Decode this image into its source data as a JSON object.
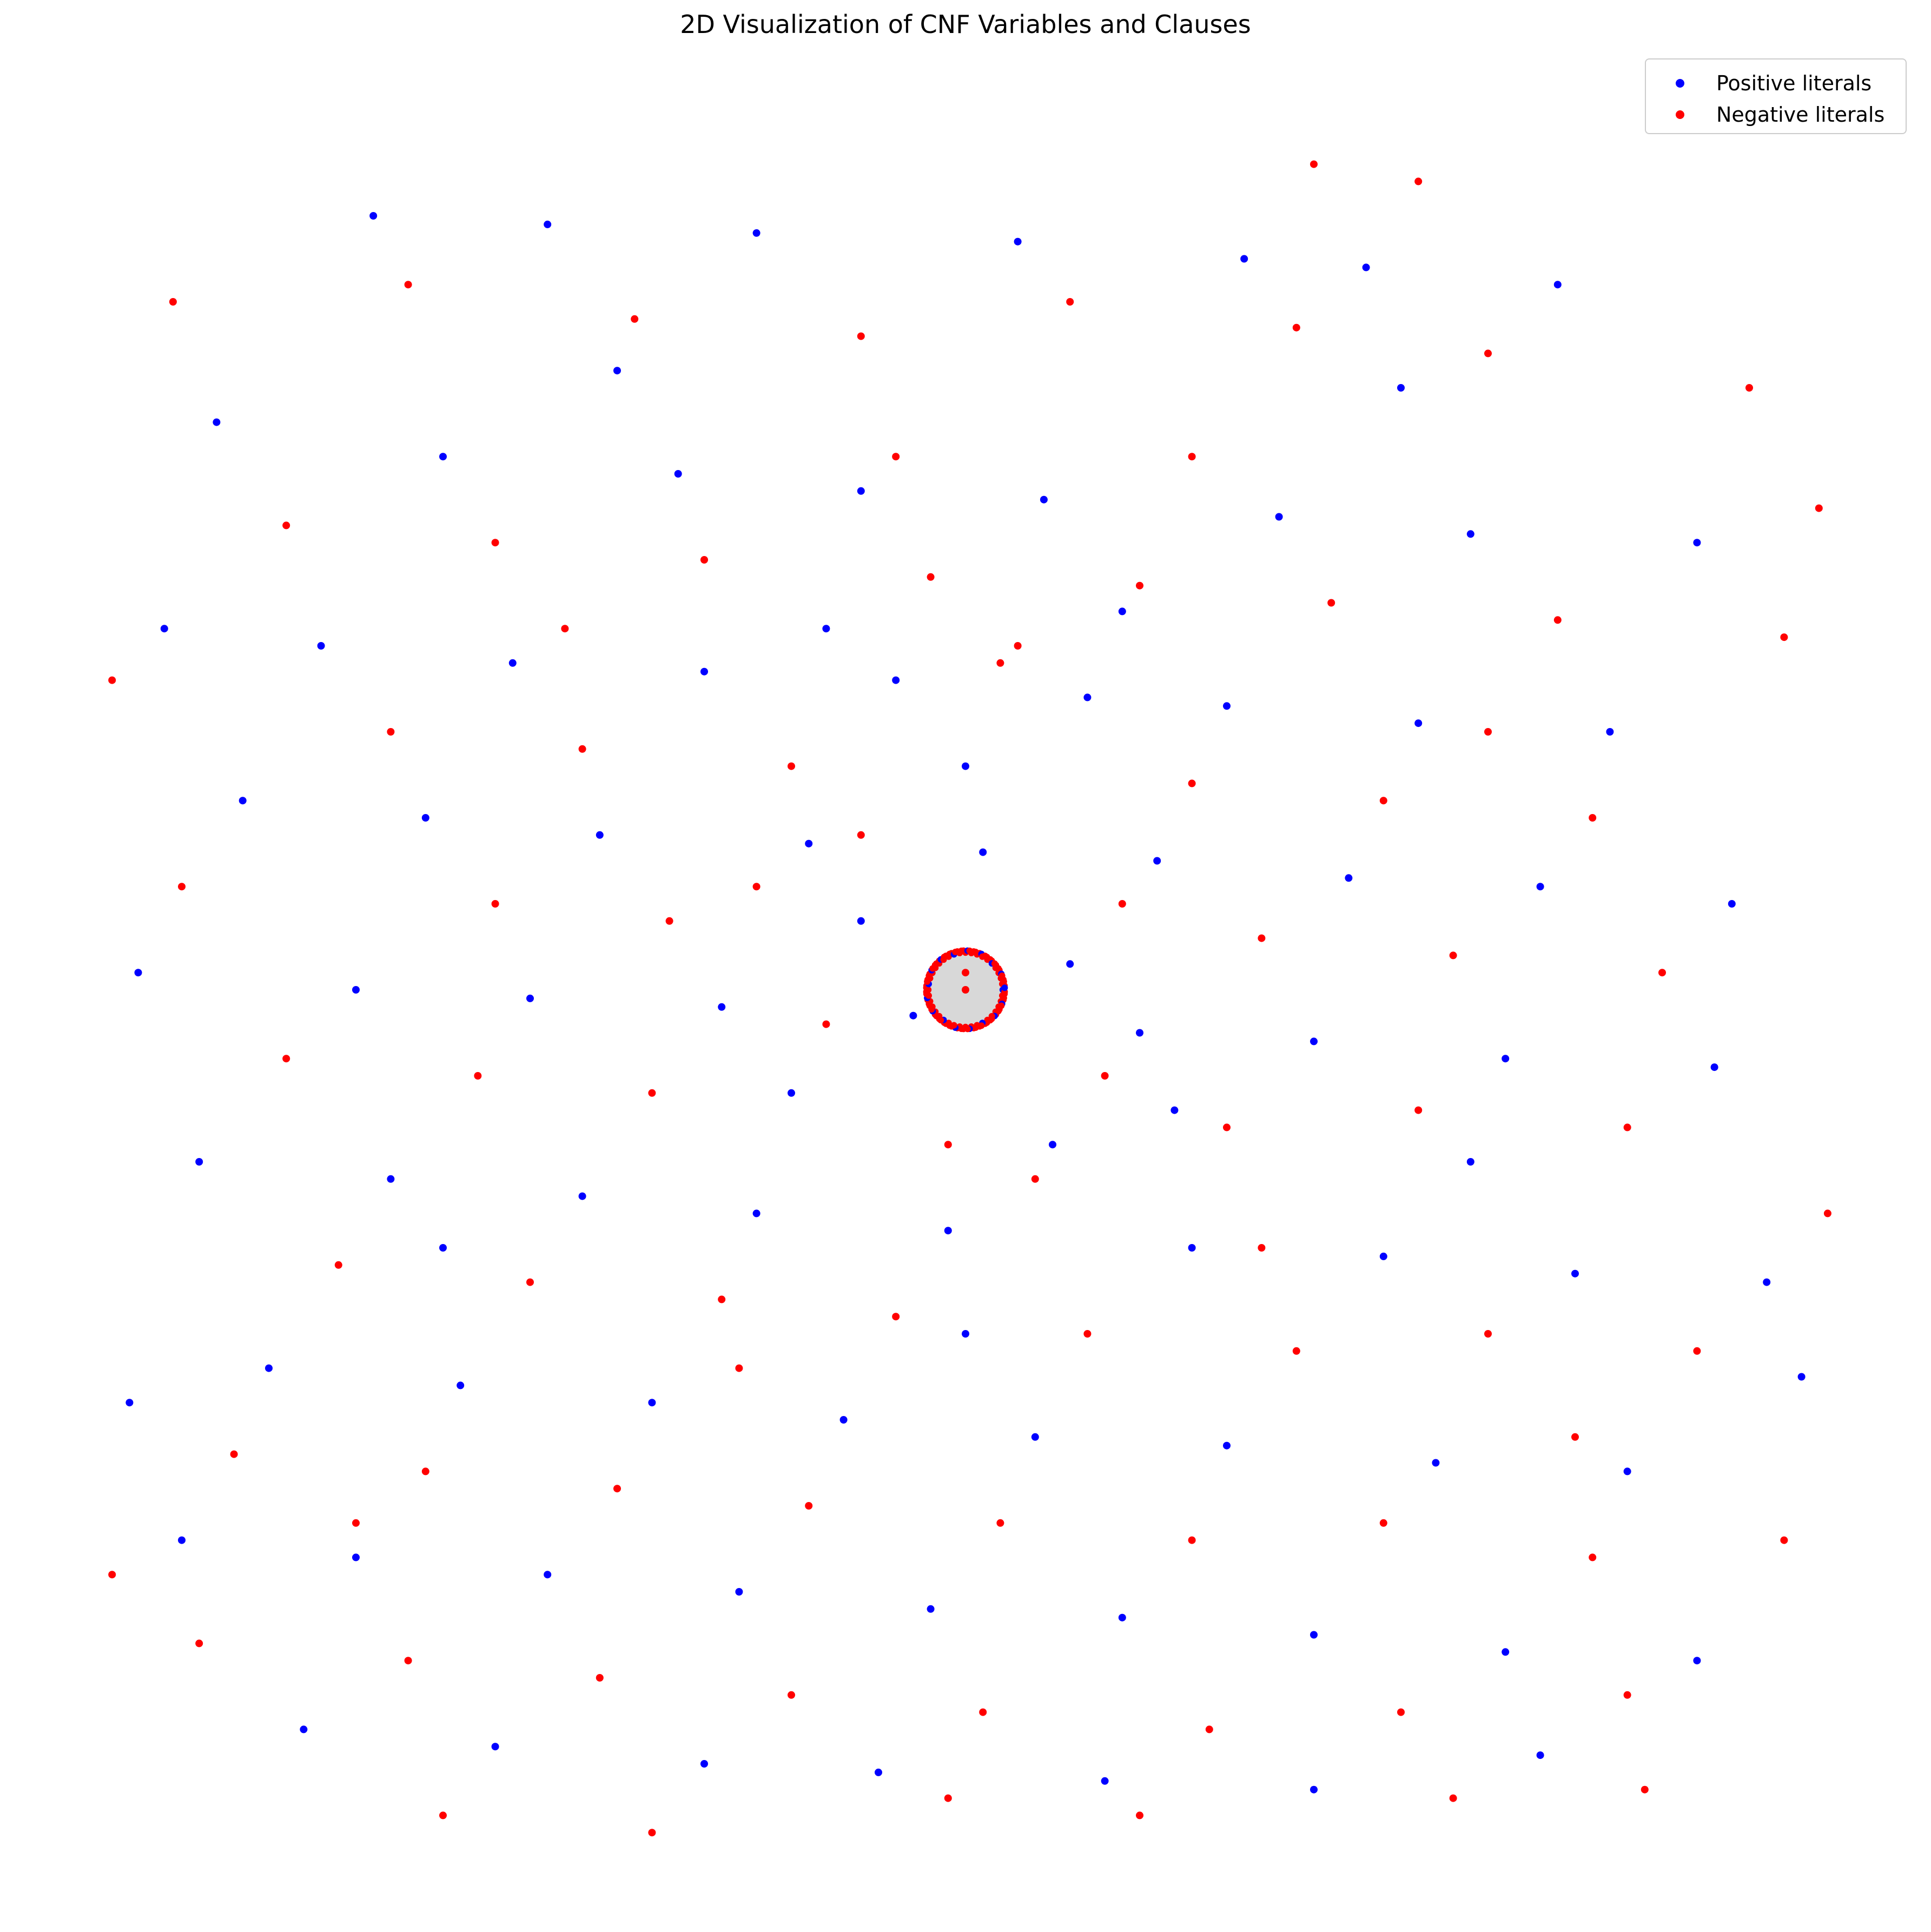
{
  "chart_data": {
    "type": "scatter",
    "title": "2D Visualization of CNF Variables and Clauses",
    "xlabel": "",
    "ylabel": "",
    "axes_visible": false,
    "grid": false,
    "xlim": [
      -1.0,
      1.0
    ],
    "ylim": [
      -1.0,
      1.0
    ],
    "legend": {
      "placement": "top-right",
      "entries": [
        {
          "label": "Positive literals",
          "color": "#0000ff"
        },
        {
          "label": "Negative literals",
          "color": "#ff0000"
        }
      ]
    },
    "series": [
      {
        "name": "Positive literals",
        "color": "#0000ff",
        "points": [
          [
            -0.68,
            0.9
          ],
          [
            -0.48,
            0.89
          ],
          [
            -0.24,
            0.88
          ],
          [
            0.06,
            0.87
          ],
          [
            0.32,
            0.85
          ],
          [
            0.46,
            0.84
          ],
          [
            0.68,
            0.82
          ],
          [
            -0.86,
            0.66
          ],
          [
            -0.6,
            0.62
          ],
          [
            -0.33,
            0.6
          ],
          [
            -0.12,
            0.58
          ],
          [
            0.09,
            0.57
          ],
          [
            0.36,
            0.55
          ],
          [
            0.58,
            0.53
          ],
          [
            0.84,
            0.52
          ],
          [
            -0.92,
            0.42
          ],
          [
            -0.74,
            0.4
          ],
          [
            -0.52,
            0.38
          ],
          [
            -0.3,
            0.37
          ],
          [
            -0.08,
            0.36
          ],
          [
            0.14,
            0.34
          ],
          [
            0.3,
            0.33
          ],
          [
            0.52,
            0.31
          ],
          [
            0.74,
            0.3
          ],
          [
            -0.83,
            0.22
          ],
          [
            -0.62,
            0.2
          ],
          [
            -0.42,
            0.18
          ],
          [
            -0.18,
            0.17
          ],
          [
            0.02,
            0.16
          ],
          [
            0.22,
            0.15
          ],
          [
            0.44,
            0.13
          ],
          [
            0.66,
            0.12
          ],
          [
            0.88,
            0.1
          ],
          [
            -0.95,
            0.02
          ],
          [
            -0.7,
            0.0
          ],
          [
            -0.5,
            -0.01
          ],
          [
            -0.28,
            -0.02
          ],
          [
            -0.06,
            -0.03
          ],
          [
            0.12,
            0.03
          ],
          [
            0.2,
            -0.05
          ],
          [
            0.4,
            -0.06
          ],
          [
            0.62,
            -0.08
          ],
          [
            0.86,
            -0.09
          ],
          [
            -0.88,
            -0.2
          ],
          [
            -0.66,
            -0.22
          ],
          [
            -0.44,
            -0.24
          ],
          [
            -0.24,
            -0.26
          ],
          [
            -0.02,
            -0.28
          ],
          [
            0.26,
            -0.3
          ],
          [
            0.48,
            -0.31
          ],
          [
            0.7,
            -0.33
          ],
          [
            0.92,
            -0.34
          ],
          [
            -0.8,
            -0.44
          ],
          [
            -0.58,
            -0.46
          ],
          [
            -0.36,
            -0.48
          ],
          [
            -0.14,
            -0.5
          ],
          [
            0.08,
            -0.52
          ],
          [
            0.3,
            -0.53
          ],
          [
            0.54,
            -0.55
          ],
          [
            0.76,
            -0.56
          ],
          [
            -0.9,
            -0.64
          ],
          [
            -0.7,
            -0.66
          ],
          [
            -0.48,
            -0.68
          ],
          [
            -0.26,
            -0.7
          ],
          [
            -0.04,
            -0.72
          ],
          [
            0.18,
            -0.73
          ],
          [
            0.4,
            -0.75
          ],
          [
            0.62,
            -0.77
          ],
          [
            0.84,
            -0.78
          ],
          [
            -0.76,
            -0.86
          ],
          [
            -0.54,
            -0.88
          ],
          [
            -0.3,
            -0.9
          ],
          [
            -0.1,
            -0.91
          ],
          [
            0.16,
            -0.92
          ],
          [
            0.4,
            -0.93
          ],
          [
            0.66,
            -0.89
          ],
          [
            -0.96,
            -0.48
          ],
          [
            0.96,
            -0.45
          ],
          [
            -0.4,
            0.72
          ],
          [
            0.5,
            0.7
          ],
          [
            -0.16,
            0.42
          ],
          [
            0.18,
            0.44
          ],
          [
            -0.2,
            -0.12
          ],
          [
            0.24,
            -0.14
          ],
          [
            -0.6,
            -0.3
          ],
          [
            0.58,
            -0.2
          ],
          [
            -0.12,
            0.08
          ],
          [
            0.1,
            -0.18
          ],
          [
            0.0,
            0.26
          ],
          [
            0.0,
            -0.4
          ]
        ]
      },
      {
        "name": "Negative literals",
        "color": "#ff0000",
        "points": [
          [
            -0.91,
            0.8
          ],
          [
            -0.64,
            0.82
          ],
          [
            -0.38,
            0.78
          ],
          [
            -0.12,
            0.76
          ],
          [
            0.12,
            0.8
          ],
          [
            0.38,
            0.77
          ],
          [
            0.6,
            0.74
          ],
          [
            0.9,
            0.7
          ],
          [
            0.4,
            0.96
          ],
          [
            0.52,
            0.94
          ],
          [
            -0.78,
            0.54
          ],
          [
            -0.54,
            0.52
          ],
          [
            -0.3,
            0.5
          ],
          [
            -0.04,
            0.48
          ],
          [
            0.2,
            0.47
          ],
          [
            0.42,
            0.45
          ],
          [
            0.68,
            0.43
          ],
          [
            0.94,
            0.41
          ],
          [
            -0.66,
            0.3
          ],
          [
            -0.44,
            0.28
          ],
          [
            -0.2,
            0.26
          ],
          [
            0.04,
            0.38
          ],
          [
            0.26,
            0.24
          ],
          [
            0.48,
            0.22
          ],
          [
            0.72,
            0.2
          ],
          [
            -0.9,
            0.12
          ],
          [
            -0.54,
            0.1
          ],
          [
            -0.34,
            0.08
          ],
          [
            -0.12,
            0.18
          ],
          [
            0.34,
            0.06
          ],
          [
            0.56,
            0.04
          ],
          [
            0.8,
            0.02
          ],
          [
            -0.78,
            -0.08
          ],
          [
            -0.56,
            -0.1
          ],
          [
            -0.36,
            -0.12
          ],
          [
            -0.16,
            -0.04
          ],
          [
            0.16,
            -0.1
          ],
          [
            0.3,
            -0.16
          ],
          [
            0.52,
            -0.14
          ],
          [
            0.76,
            -0.16
          ],
          [
            -0.72,
            -0.32
          ],
          [
            -0.5,
            -0.34
          ],
          [
            -0.28,
            -0.36
          ],
          [
            -0.08,
            -0.38
          ],
          [
            0.14,
            -0.4
          ],
          [
            0.38,
            -0.42
          ],
          [
            0.6,
            -0.4
          ],
          [
            0.84,
            -0.42
          ],
          [
            -0.84,
            -0.54
          ],
          [
            -0.62,
            -0.56
          ],
          [
            -0.4,
            -0.58
          ],
          [
            -0.18,
            -0.6
          ],
          [
            0.04,
            -0.62
          ],
          [
            0.26,
            -0.64
          ],
          [
            0.48,
            -0.62
          ],
          [
            0.72,
            -0.66
          ],
          [
            0.94,
            -0.64
          ],
          [
            -0.88,
            -0.76
          ],
          [
            -0.64,
            -0.78
          ],
          [
            -0.42,
            -0.8
          ],
          [
            -0.2,
            -0.82
          ],
          [
            0.02,
            -0.84
          ],
          [
            0.28,
            -0.86
          ],
          [
            0.5,
            -0.84
          ],
          [
            0.76,
            -0.82
          ],
          [
            -0.6,
            -0.96
          ],
          [
            -0.36,
            -0.98
          ],
          [
            -0.02,
            -0.94
          ],
          [
            0.2,
            -0.96
          ],
          [
            0.56,
            -0.94
          ],
          [
            0.78,
            -0.93
          ],
          [
            -0.98,
            0.36
          ],
          [
            0.98,
            0.56
          ],
          [
            -0.98,
            -0.68
          ],
          [
            0.99,
            -0.26
          ],
          [
            -0.08,
            0.62
          ],
          [
            0.26,
            0.62
          ],
          [
            -0.24,
            0.12
          ],
          [
            0.18,
            0.1
          ],
          [
            0.08,
            -0.22
          ],
          [
            -0.02,
            -0.18
          ],
          [
            0.06,
            0.4
          ],
          [
            -0.26,
            -0.44
          ],
          [
            0.34,
            -0.3
          ],
          [
            -0.46,
            0.42
          ],
          [
            0.6,
            0.3
          ],
          [
            -0.7,
            -0.62
          ],
          [
            0.7,
            -0.52
          ],
          [
            0.0,
            0.02
          ],
          [
            0.0,
            0.0
          ]
        ]
      }
    ],
    "cluster": {
      "center": [
        0.0,
        0.0
      ],
      "radius_data": 0.045,
      "fill_color": "#d8d8d8",
      "edge_color": "#ff0000",
      "member_colors": [
        "#ff0000",
        "#0000ff"
      ]
    }
  }
}
